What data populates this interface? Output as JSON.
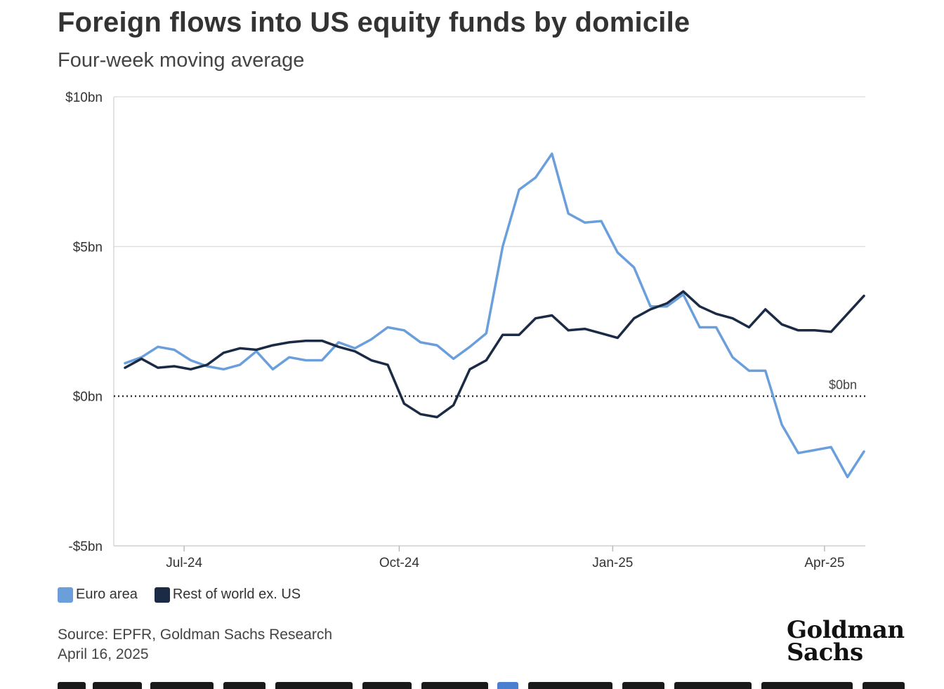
{
  "title": "Foreign flows into US equity funds by domicile",
  "subtitle": "Four-week moving average",
  "source_line1": "Source: EPFR, Goldman Sachs Research",
  "source_line2": "April 16, 2025",
  "logo": {
    "line1": "Goldman",
    "line2": "Sachs"
  },
  "colors": {
    "euro": "#6a9fdc",
    "row": "#1b2b45",
    "grid": "#e0e0e0",
    "zero": "#333333",
    "text": "#333333"
  },
  "chart_data": {
    "type": "line",
    "title": "Foreign flows into US equity funds by domicile",
    "subtitle": "Four-week moving average",
    "ylim": [
      -5,
      10
    ],
    "yticks": [
      {
        "value": 10,
        "label": "$10bn"
      },
      {
        "value": 5,
        "label": "$5bn"
      },
      {
        "value": 0,
        "label": "$0bn"
      },
      {
        "value": -5,
        "label": "-$5bn"
      }
    ],
    "zero_line_label": "$0bn",
    "xticks": [
      {
        "label": "Jul-24",
        "week": 3.6
      },
      {
        "label": "Oct-24",
        "week": 16.7
      },
      {
        "label": "Jan-25",
        "week": 29.7
      },
      {
        "label": "Apr-25",
        "week": 42.6
      }
    ],
    "x_start": "2024-06-07",
    "x_interval": "weekly",
    "grid": "horizontal",
    "legend_position": "bottom-left",
    "series": [
      {
        "name": "Euro area",
        "color": "#6a9fdc",
        "values": [
          1.1,
          1.3,
          1.65,
          1.55,
          1.2,
          1.0,
          0.9,
          1.05,
          1.5,
          0.9,
          1.3,
          1.2,
          1.2,
          1.8,
          1.6,
          1.9,
          2.3,
          2.2,
          1.8,
          1.7,
          1.25,
          1.65,
          2.1,
          5.0,
          6.9,
          7.3,
          8.1,
          6.1,
          5.8,
          5.85,
          4.8,
          4.3,
          3.0,
          3.0,
          3.4,
          2.3,
          2.3,
          1.3,
          0.85,
          0.85,
          -0.95,
          -1.9,
          -1.8,
          -1.7,
          -2.7,
          -1.85
        ]
      },
      {
        "name": "Rest of world ex. US",
        "color": "#1b2b45",
        "values": [
          0.95,
          1.25,
          0.95,
          1.0,
          0.9,
          1.05,
          1.45,
          1.6,
          1.55,
          1.7,
          1.8,
          1.85,
          1.85,
          1.65,
          1.5,
          1.2,
          1.05,
          -0.25,
          -0.6,
          -0.7,
          -0.3,
          0.9,
          1.2,
          2.05,
          2.05,
          2.6,
          2.7,
          2.2,
          2.25,
          2.1,
          1.95,
          2.6,
          2.9,
          3.1,
          3.5,
          3.0,
          2.75,
          2.6,
          2.3,
          2.9,
          2.4,
          2.2,
          2.2,
          2.15,
          2.75,
          3.35
        ]
      }
    ]
  }
}
